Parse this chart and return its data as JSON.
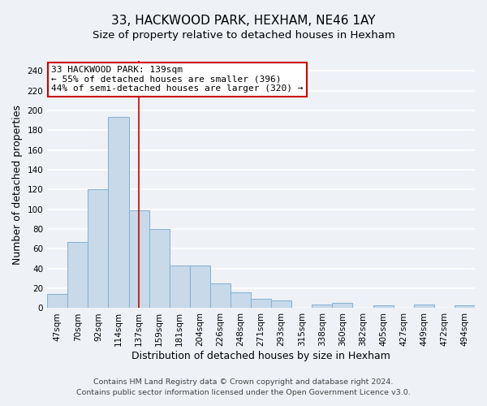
{
  "title": "33, HACKWOOD PARK, HEXHAM, NE46 1AY",
  "subtitle": "Size of property relative to detached houses in Hexham",
  "xlabel": "Distribution of detached houses by size in Hexham",
  "ylabel": "Number of detached properties",
  "categories": [
    "47sqm",
    "70sqm",
    "92sqm",
    "114sqm",
    "137sqm",
    "159sqm",
    "181sqm",
    "204sqm",
    "226sqm",
    "248sqm",
    "271sqm",
    "293sqm",
    "315sqm",
    "338sqm",
    "360sqm",
    "382sqm",
    "405sqm",
    "427sqm",
    "449sqm",
    "472sqm",
    "494sqm"
  ],
  "values": [
    14,
    67,
    120,
    193,
    99,
    80,
    43,
    43,
    25,
    16,
    9,
    8,
    0,
    4,
    5,
    0,
    3,
    0,
    4,
    0,
    3
  ],
  "bar_color": "#c8daea",
  "bar_edge_color": "#8ab4d4",
  "vline_x_index": 4,
  "vline_color": "#cc0000",
  "ylim": [
    0,
    250
  ],
  "yticks": [
    0,
    20,
    40,
    60,
    80,
    100,
    120,
    140,
    160,
    180,
    200,
    220,
    240
  ],
  "annotation_title": "33 HACKWOOD PARK: 139sqm",
  "annotation_line1": "← 55% of detached houses are smaller (396)",
  "annotation_line2": "44% of semi-detached houses are larger (320) →",
  "annotation_box_color": "#ffffff",
  "annotation_box_edge": "#cc0000",
  "footer_line1": "Contains HM Land Registry data © Crown copyright and database right 2024.",
  "footer_line2": "Contains public sector information licensed under the Open Government Licence v3.0.",
  "background_color": "#eef2f7",
  "plot_background_color": "#eef2f7",
  "grid_color": "#ffffff",
  "title_fontsize": 11,
  "subtitle_fontsize": 9.5,
  "label_fontsize": 9,
  "tick_fontsize": 7.5,
  "footer_fontsize": 6.8,
  "ann_fontsize": 8
}
